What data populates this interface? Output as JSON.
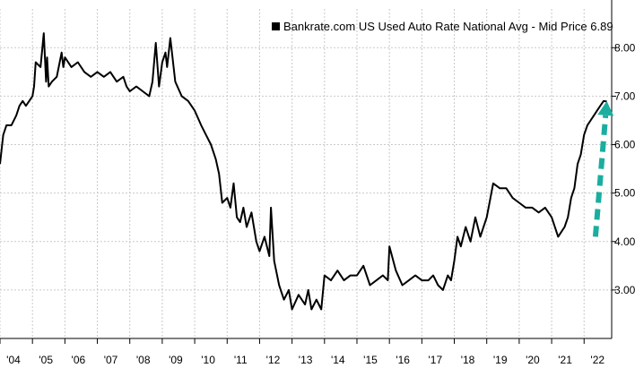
{
  "chart_data": {
    "type": "line",
    "title": "",
    "xlabel": "",
    "ylabel": "",
    "legend": {
      "placement": "top-right",
      "label": "Bankrate.com US Used Auto Rate National Avg - Mid Price 6.89"
    },
    "y_axis": {
      "side": "right",
      "ylim": [
        2.0,
        8.8
      ],
      "ticks": [
        "3.00",
        "4.00",
        "5.00",
        "6.00",
        "7.00",
        "8.00"
      ],
      "tick_values": [
        3,
        4,
        5,
        6,
        7,
        8
      ]
    },
    "x_axis": {
      "xlim": [
        2004.0,
        2022.85
      ],
      "ticks": [
        "'04",
        "'05",
        "'06",
        "'07",
        "'08",
        "'09",
        "'10",
        "'11",
        "'12",
        "'13",
        "'14",
        "'15",
        "'16",
        "'17",
        "'18",
        "'19",
        "'20",
        "'21",
        "'22"
      ],
      "tick_values": [
        2004,
        2005,
        2006,
        2007,
        2008,
        2009,
        2010,
        2011,
        2012,
        2013,
        2014,
        2015,
        2016,
        2017,
        2018,
        2019,
        2020,
        2021,
        2022
      ]
    },
    "grid": {
      "horizontal": true,
      "vertical": true,
      "style": "dotted"
    },
    "colors": {
      "line": "#000000",
      "arrow": "#1aae9f",
      "grid": "#c9c9c9"
    },
    "series": [
      {
        "name": "Bankrate.com US Used Auto Rate National Avg - Mid Price",
        "x": [
          2004.0,
          2004.1,
          2004.2,
          2004.35,
          2004.5,
          2004.6,
          2004.7,
          2004.8,
          2004.9,
          2005.0,
          2005.05,
          2005.1,
          2005.25,
          2005.35,
          2005.42,
          2005.45,
          2005.5,
          2005.6,
          2005.75,
          2005.9,
          2005.95,
          2006.0,
          2006.2,
          2006.4,
          2006.6,
          2006.8,
          2007.0,
          2007.2,
          2007.4,
          2007.6,
          2007.8,
          2007.9,
          2008.0,
          2008.2,
          2008.4,
          2008.6,
          2008.7,
          2008.8,
          2008.9,
          2009.0,
          2009.1,
          2009.15,
          2009.25,
          2009.4,
          2009.6,
          2009.8,
          2010.0,
          2010.2,
          2010.35,
          2010.5,
          2010.65,
          2010.75,
          2010.85,
          2011.0,
          2011.1,
          2011.2,
          2011.3,
          2011.4,
          2011.5,
          2011.6,
          2011.75,
          2011.9,
          2012.0,
          2012.15,
          2012.3,
          2012.35,
          2012.45,
          2012.6,
          2012.75,
          2012.9,
          2013.0,
          2013.2,
          2013.4,
          2013.5,
          2013.6,
          2013.75,
          2013.9,
          2014.0,
          2014.2,
          2014.4,
          2014.6,
          2014.8,
          2015.0,
          2015.2,
          2015.4,
          2015.6,
          2015.8,
          2015.95,
          2016.0,
          2016.2,
          2016.4,
          2016.6,
          2016.8,
          2017.0,
          2017.2,
          2017.35,
          2017.5,
          2017.65,
          2017.8,
          2017.9,
          2018.0,
          2018.1,
          2018.2,
          2018.35,
          2018.5,
          2018.65,
          2018.8,
          2018.9,
          2019.0,
          2019.2,
          2019.4,
          2019.6,
          2019.8,
          2020.0,
          2020.2,
          2020.4,
          2020.6,
          2020.8,
          2021.0,
          2021.2,
          2021.3,
          2021.4,
          2021.5,
          2021.6,
          2021.7,
          2021.8,
          2021.9,
          2022.0,
          2022.1,
          2022.2,
          2022.3,
          2022.4,
          2022.5,
          2022.6,
          2022.7
        ],
        "values": [
          5.6,
          6.2,
          6.4,
          6.4,
          6.6,
          6.8,
          6.9,
          6.8,
          6.9,
          7.0,
          7.2,
          7.7,
          7.6,
          8.3,
          7.3,
          7.8,
          7.2,
          7.3,
          7.4,
          7.9,
          7.6,
          7.8,
          7.6,
          7.7,
          7.5,
          7.4,
          7.5,
          7.4,
          7.5,
          7.3,
          7.4,
          7.2,
          7.1,
          7.2,
          7.1,
          7.0,
          7.3,
          8.1,
          7.2,
          7.7,
          7.9,
          7.6,
          8.2,
          7.3,
          7.0,
          6.9,
          6.7,
          6.4,
          6.2,
          6.0,
          5.7,
          5.4,
          4.8,
          4.9,
          4.7,
          5.2,
          4.5,
          4.4,
          4.7,
          4.3,
          4.6,
          4.0,
          3.8,
          4.1,
          3.7,
          4.7,
          3.6,
          3.1,
          2.8,
          3.0,
          2.6,
          2.9,
          2.7,
          3.0,
          2.6,
          2.8,
          2.6,
          3.3,
          3.2,
          3.4,
          3.2,
          3.3,
          3.3,
          3.5,
          3.1,
          3.2,
          3.3,
          3.2,
          3.9,
          3.4,
          3.1,
          3.2,
          3.3,
          3.2,
          3.2,
          3.3,
          3.1,
          3.0,
          3.3,
          3.2,
          3.6,
          4.1,
          3.9,
          4.3,
          4.0,
          4.5,
          4.1,
          4.3,
          4.5,
          5.2,
          5.1,
          5.1,
          4.9,
          4.8,
          4.7,
          4.7,
          4.6,
          4.7,
          4.5,
          4.1,
          4.2,
          4.3,
          4.5,
          4.9,
          5.1,
          5.6,
          5.8,
          6.2,
          6.4,
          6.5,
          6.6,
          6.7,
          6.8,
          6.9,
          6.89
        ]
      }
    ],
    "annotations": [
      {
        "type": "arrow",
        "style": "dashed",
        "from": [
          2022.35,
          4.1
        ],
        "to": [
          2022.7,
          6.9
        ]
      }
    ]
  }
}
